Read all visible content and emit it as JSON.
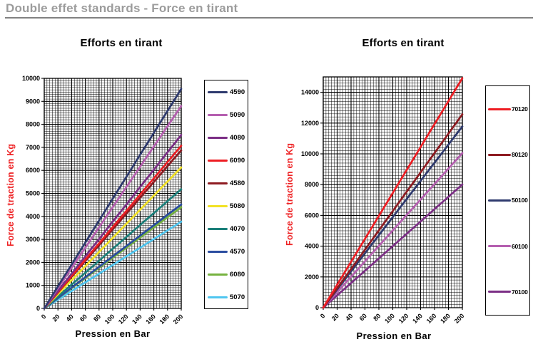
{
  "header": {
    "title": "Double effet standards - Force en tirant"
  },
  "chart_data": [
    {
      "type": "line",
      "title": "Efforts en tirant",
      "xlabel": "Pression en Bar",
      "ylabel": "Force de traction en Kg",
      "ylabel_color": "#ee2224",
      "x_range": [
        0,
        200
      ],
      "y_range": [
        0,
        10000
      ],
      "x_ticks": [
        0,
        20,
        40,
        60,
        80,
        100,
        120,
        140,
        160,
        180,
        200
      ],
      "y_ticks": [
        0,
        1000,
        2000,
        3000,
        4000,
        5000,
        6000,
        7000,
        8000,
        9000,
        10000
      ],
      "x_minor_step": 4,
      "y_minor_step": 100,
      "grid": "on",
      "legend_position": "right",
      "series": [
        {
          "name": "4590",
          "color": "#2e3a6e",
          "points": [
            [
              0,
              0
            ],
            [
              200,
              9540
            ]
          ]
        },
        {
          "name": "5090",
          "color": "#b55fb0",
          "points": [
            [
              0,
              0
            ],
            [
              200,
              8800
            ]
          ]
        },
        {
          "name": "4080",
          "color": "#7b2e85",
          "points": [
            [
              0,
              0
            ],
            [
              200,
              7540
            ]
          ]
        },
        {
          "name": "6090",
          "color": "#ee1d23",
          "points": [
            [
              0,
              0
            ],
            [
              200,
              7070
            ]
          ]
        },
        {
          "name": "4580",
          "color": "#8e1b21",
          "points": [
            [
              0,
              0
            ],
            [
              200,
              6870
            ]
          ]
        },
        {
          "name": "5080",
          "color": "#f2e225",
          "points": [
            [
              0,
              0
            ],
            [
              200,
              6130
            ]
          ]
        },
        {
          "name": "4070",
          "color": "#1b7f7a",
          "points": [
            [
              0,
              0
            ],
            [
              200,
              5180
            ]
          ]
        },
        {
          "name": "4570",
          "color": "#2a4c9f",
          "points": [
            [
              0,
              0
            ],
            [
              200,
              4520
            ]
          ]
        },
        {
          "name": "6080",
          "color": "#76b23f",
          "points": [
            [
              0,
              0
            ],
            [
              200,
              4400
            ]
          ]
        },
        {
          "name": "5070",
          "color": "#4fc6f0",
          "points": [
            [
              0,
              0
            ],
            [
              200,
              3770
            ]
          ]
        }
      ]
    },
    {
      "type": "line",
      "title": "Efforts en tirant",
      "xlabel": "Pression en Bar",
      "ylabel": "Force de traction en Kg",
      "ylabel_color": "#ee2224",
      "x_range": [
        0,
        200
      ],
      "y_range": [
        0,
        15000
      ],
      "x_ticks": [
        0,
        20,
        40,
        60,
        80,
        100,
        120,
        140,
        160,
        180,
        200
      ],
      "y_ticks": [
        0,
        2000,
        4000,
        6000,
        8000,
        10000,
        12000,
        14000
      ],
      "x_minor_step": 4,
      "y_minor_step": 200,
      "grid": "on",
      "legend_position": "right",
      "series": [
        {
          "name": "70120",
          "color": "#ee1d23",
          "points": [
            [
              0,
              0
            ],
            [
              200,
              14920
            ]
          ]
        },
        {
          "name": "80120",
          "color": "#8e1b21",
          "points": [
            [
              0,
              0
            ],
            [
              200,
              12570
            ]
          ]
        },
        {
          "name": "50100",
          "color": "#2e3a6e",
          "points": [
            [
              0,
              0
            ],
            [
              200,
              11780
            ]
          ]
        },
        {
          "name": "60100",
          "color": "#b55fb0",
          "points": [
            [
              0,
              0
            ],
            [
              200,
              10050
            ]
          ]
        },
        {
          "name": "70100",
          "color": "#7b2e85",
          "points": [
            [
              0,
              0
            ],
            [
              200,
              8010
            ]
          ]
        }
      ]
    }
  ]
}
